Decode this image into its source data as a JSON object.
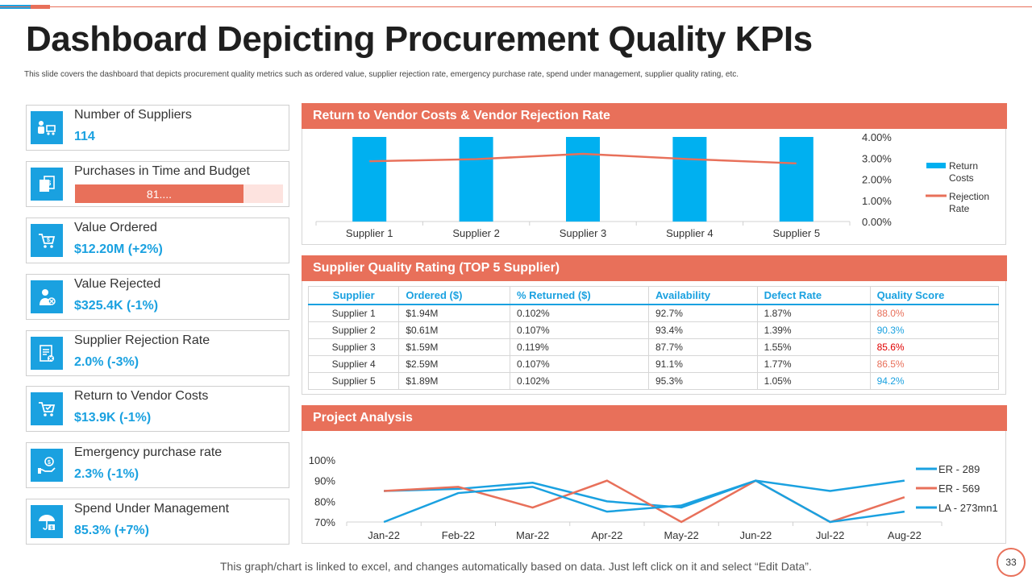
{
  "title": "Dashboard Depicting Procurement Quality KPIs",
  "subtitle": "This slide covers the dashboard that depicts procurement quality metrics such as ordered value, supplier rejection rate, emergency purchase rate, spend under management, supplier quality rating, etc.",
  "colors": {
    "accent": "#e8705a",
    "blue": "#1aa1e0",
    "light_red": "#fde3df"
  },
  "kpis": [
    {
      "label": "Number of Suppliers",
      "value": "114",
      "icon": "suppliers-icon"
    },
    {
      "label": "Purchases in Time and Budget",
      "bar_text": "81....",
      "bar_fraction": 0.81,
      "icon": "budget-icon"
    },
    {
      "label": "Value Ordered",
      "value": "$12.20M (+2%)",
      "icon": "cart-dollar-icon"
    },
    {
      "label": "Value Rejected",
      "value": "$325.4K (-1%)",
      "icon": "person-reject-icon"
    },
    {
      "label": "Supplier Rejection Rate",
      "value": "2.0% (-3%)",
      "icon": "document-reject-icon"
    },
    {
      "label": "Return to Vendor Costs",
      "value": "$13.9K (-1%)",
      "icon": "cart-check-icon"
    },
    {
      "label": "Emergency purchase rate",
      "value": "2.3% (-1%)",
      "icon": "hand-money-icon"
    },
    {
      "label": "Spend Under Management",
      "value": "85.3% (+7%)",
      "icon": "umbrella-money-icon"
    }
  ],
  "panel1": {
    "title": "Return to Vendor Costs & Vendor Rejection Rate"
  },
  "panel2": {
    "title": "Supplier Quality Rating (TOP 5 Supplier)"
  },
  "panel3": {
    "title": "Project Analysis"
  },
  "table": {
    "headers": [
      "Supplier",
      "Ordered ($)",
      "% Returned ($)",
      "Availability",
      "Defect Rate",
      "Quality Score"
    ],
    "rows": [
      [
        "Supplier 1",
        "$1.94M",
        "0.102%",
        "92.7%",
        "1.87%",
        "88.0%"
      ],
      [
        "Supplier 2",
        "$0.61M",
        "0.107%",
        "93.4%",
        "1.39%",
        "90.3%"
      ],
      [
        "Supplier 3",
        "$1.59M",
        "0.119%",
        "87.7%",
        "1.55%",
        "85.6%"
      ],
      [
        "Supplier 4",
        "$2.59M",
        "0.107%",
        "91.1%",
        "1.77%",
        "86.5%"
      ],
      [
        "Supplier 5",
        "$1.89M",
        "0.102%",
        "95.3%",
        "1.05%",
        "94.2%"
      ]
    ],
    "score_colors": [
      "#e8705a",
      "#1aa1e0",
      "#e00000",
      "#e8705a",
      "#1aa1e0"
    ]
  },
  "chart_data": [
    {
      "type": "bar",
      "title": "Return to Vendor Costs & Vendor Rejection Rate",
      "categories": [
        "Supplier 1",
        "Supplier 2",
        "Supplier 3",
        "Supplier 4",
        "Supplier 5"
      ],
      "series": [
        {
          "name": "Return Costs",
          "name_lines": [
            "Return",
            "Costs"
          ],
          "kind": "bar",
          "values": [
            4.0,
            4.0,
            4.0,
            4.0,
            4.0
          ]
        },
        {
          "name": "Rejection Rate",
          "name_lines": [
            "Rejection",
            "Rate"
          ],
          "kind": "line",
          "values": [
            2.85,
            2.95,
            3.2,
            2.95,
            2.75
          ]
        }
      ],
      "yticks": [
        "4.00%",
        "3.00%",
        "2.00%",
        "1.00%",
        "0.00%"
      ],
      "ylim": [
        0,
        4
      ],
      "legend": "right"
    },
    {
      "type": "line",
      "title": "Project Analysis",
      "categories": [
        "Jan-22",
        "Feb-22",
        "Mar-22",
        "Apr-22",
        "May-22",
        "Jun-22",
        "Jul-22",
        "Aug-22"
      ],
      "series": [
        {
          "name": "ER - 289",
          "color": "#1aa1e0",
          "values": [
            85,
            86,
            89,
            80,
            77,
            90,
            85,
            90
          ]
        },
        {
          "name": "ER - 569",
          "color": "#e8705a",
          "values": [
            85,
            87,
            77,
            90,
            70,
            90,
            70,
            82
          ]
        },
        {
          "name": "LA - 273mn1",
          "color": "#1aa1e0",
          "values": [
            70,
            84,
            87,
            75,
            78,
            90,
            70,
            75
          ]
        }
      ],
      "yticks": [
        "100%",
        "90%",
        "80%",
        "70%"
      ],
      "ylim": [
        70,
        100
      ],
      "legend": "right"
    }
  ],
  "footer": "This graph/chart is linked to excel,  and changes automatically based on data. Just left click on it and select “Edit Data”.",
  "page_number": "33"
}
